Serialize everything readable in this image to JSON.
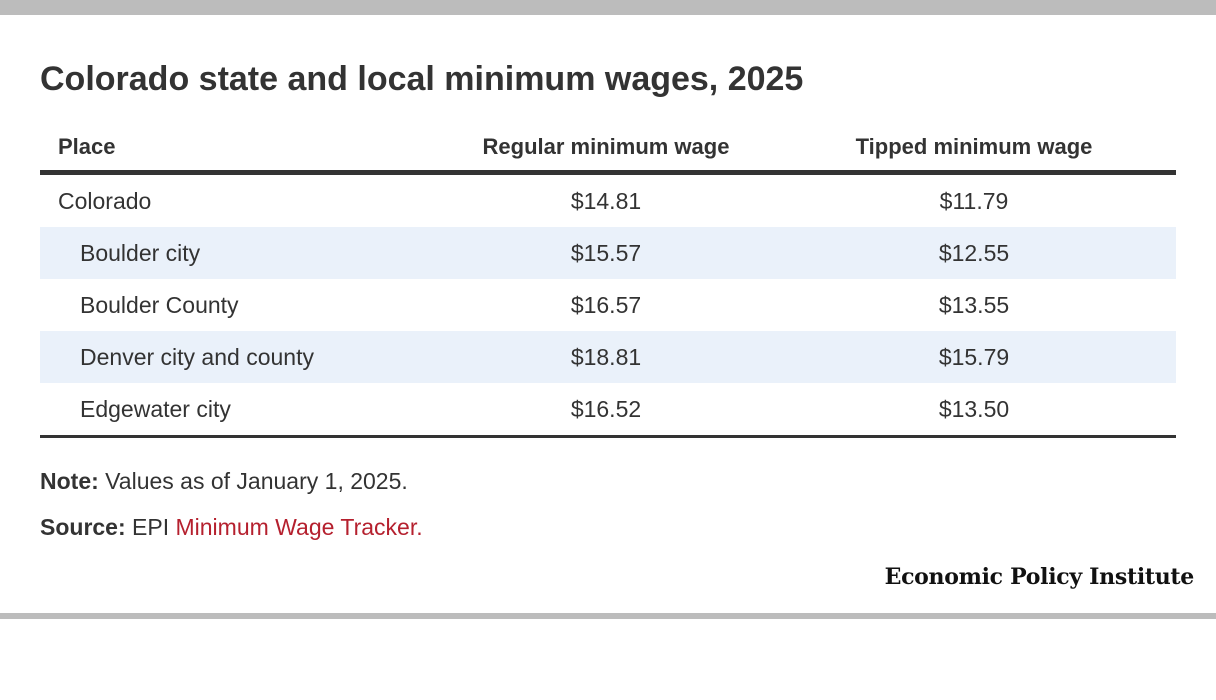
{
  "chart_data": {
    "type": "table",
    "title": "Colorado state and local minimum wages, 2025",
    "columns": [
      "Place",
      "Regular minimum wage",
      "Tipped minimum wage"
    ],
    "rows": [
      {
        "place": "Colorado",
        "regular": "$14.81",
        "tipped": "$11.79"
      },
      {
        "place": "Boulder city",
        "regular": "$15.57",
        "tipped": "$12.55"
      },
      {
        "place": "Boulder County",
        "regular": "$16.57",
        "tipped": "$13.55"
      },
      {
        "place": "Denver city and county",
        "regular": "$18.81",
        "tipped": "$15.79"
      },
      {
        "place": "Edgewater city",
        "regular": "$16.52",
        "tipped": "$13.50"
      }
    ]
  },
  "note": {
    "label": "Note:",
    "text": "Values as of January 1, 2025."
  },
  "source": {
    "label": "Source:",
    "prefix": "EPI",
    "link_text": "Minimum Wage Tracker."
  },
  "brand": "Economic Policy Institute",
  "colors": {
    "link": "#b5202e",
    "row_alt": "#eaf1fa",
    "rule": "#bcbcbc"
  }
}
